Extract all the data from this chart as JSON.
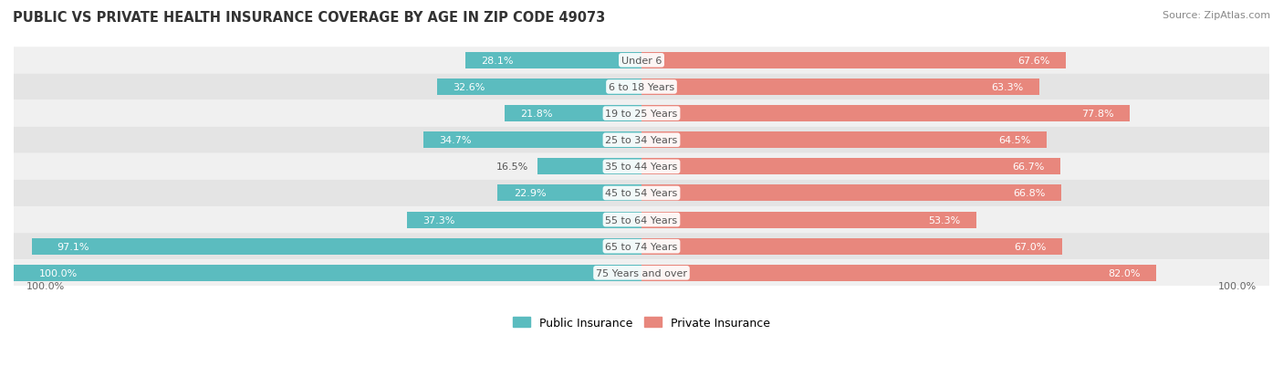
{
  "title": "PUBLIC VS PRIVATE HEALTH INSURANCE COVERAGE BY AGE IN ZIP CODE 49073",
  "source": "Source: ZipAtlas.com",
  "categories": [
    "Under 6",
    "6 to 18 Years",
    "19 to 25 Years",
    "25 to 34 Years",
    "35 to 44 Years",
    "45 to 54 Years",
    "55 to 64 Years",
    "65 to 74 Years",
    "75 Years and over"
  ],
  "public_values": [
    28.1,
    32.6,
    21.8,
    34.7,
    16.5,
    22.9,
    37.3,
    97.1,
    100.0
  ],
  "private_values": [
    67.6,
    63.3,
    77.8,
    64.5,
    66.7,
    66.8,
    53.3,
    67.0,
    82.0
  ],
  "public_color": "#5bbcbf",
  "private_color": "#e8877d",
  "row_bg_colors": [
    "#f0f0f0",
    "#e4e4e4"
  ],
  "title_color": "#333333",
  "source_color": "#888888",
  "label_color_dark": "#555555",
  "label_color_white": "#ffffff",
  "axis_label": "100.0%",
  "max_value": 100.0,
  "bar_height": 0.62,
  "fig_bg_color": "#ffffff",
  "legend_label_public": "Public Insurance",
  "legend_label_private": "Private Insurance"
}
